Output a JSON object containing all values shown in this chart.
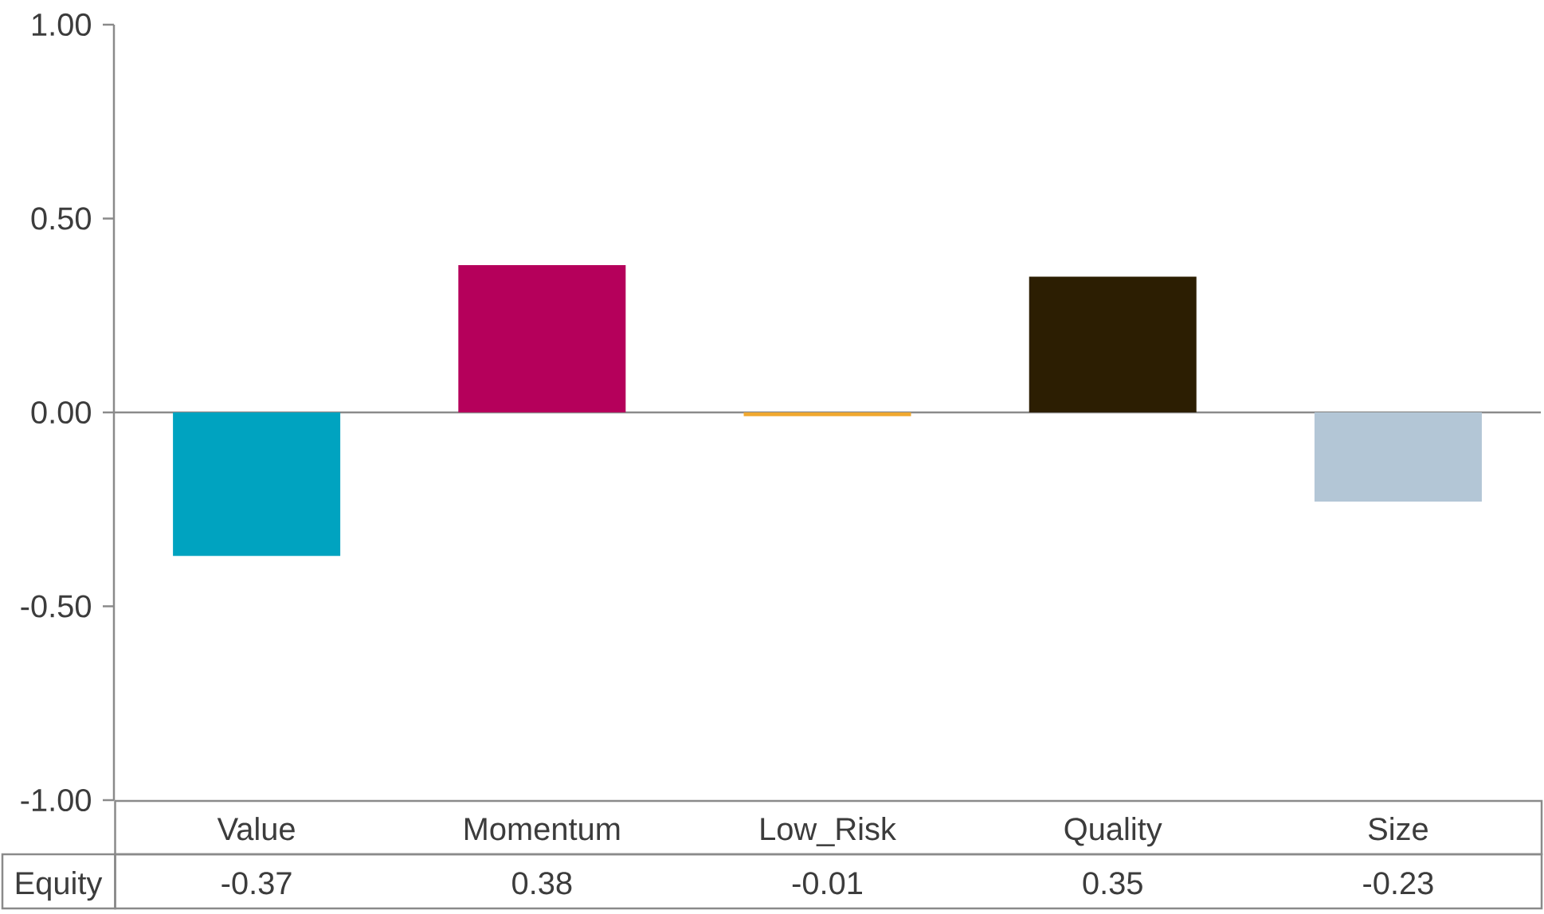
{
  "chart_data": {
    "type": "bar",
    "categories": [
      "Value",
      "Momentum",
      "Low_Risk",
      "Quality",
      "Size"
    ],
    "series": [
      {
        "name": "Equity",
        "colors": [
          "#00a3c0",
          "#b5005b",
          "#f0a830",
          "#2c1e02",
          "#b3c6d6"
        ],
        "values": [
          -0.37,
          0.38,
          -0.01,
          0.35,
          -0.23
        ]
      }
    ],
    "ylim": [
      -1,
      1
    ],
    "yticks": [
      {
        "value": 1,
        "label": "1.00"
      },
      {
        "value": 0.5,
        "label": "0.50"
      },
      {
        "value": 0,
        "label": "0.00"
      },
      {
        "value": -0.5,
        "label": "-0.50"
      },
      {
        "value": -1,
        "label": "-1.00"
      }
    ],
    "data_labels": true
  }
}
